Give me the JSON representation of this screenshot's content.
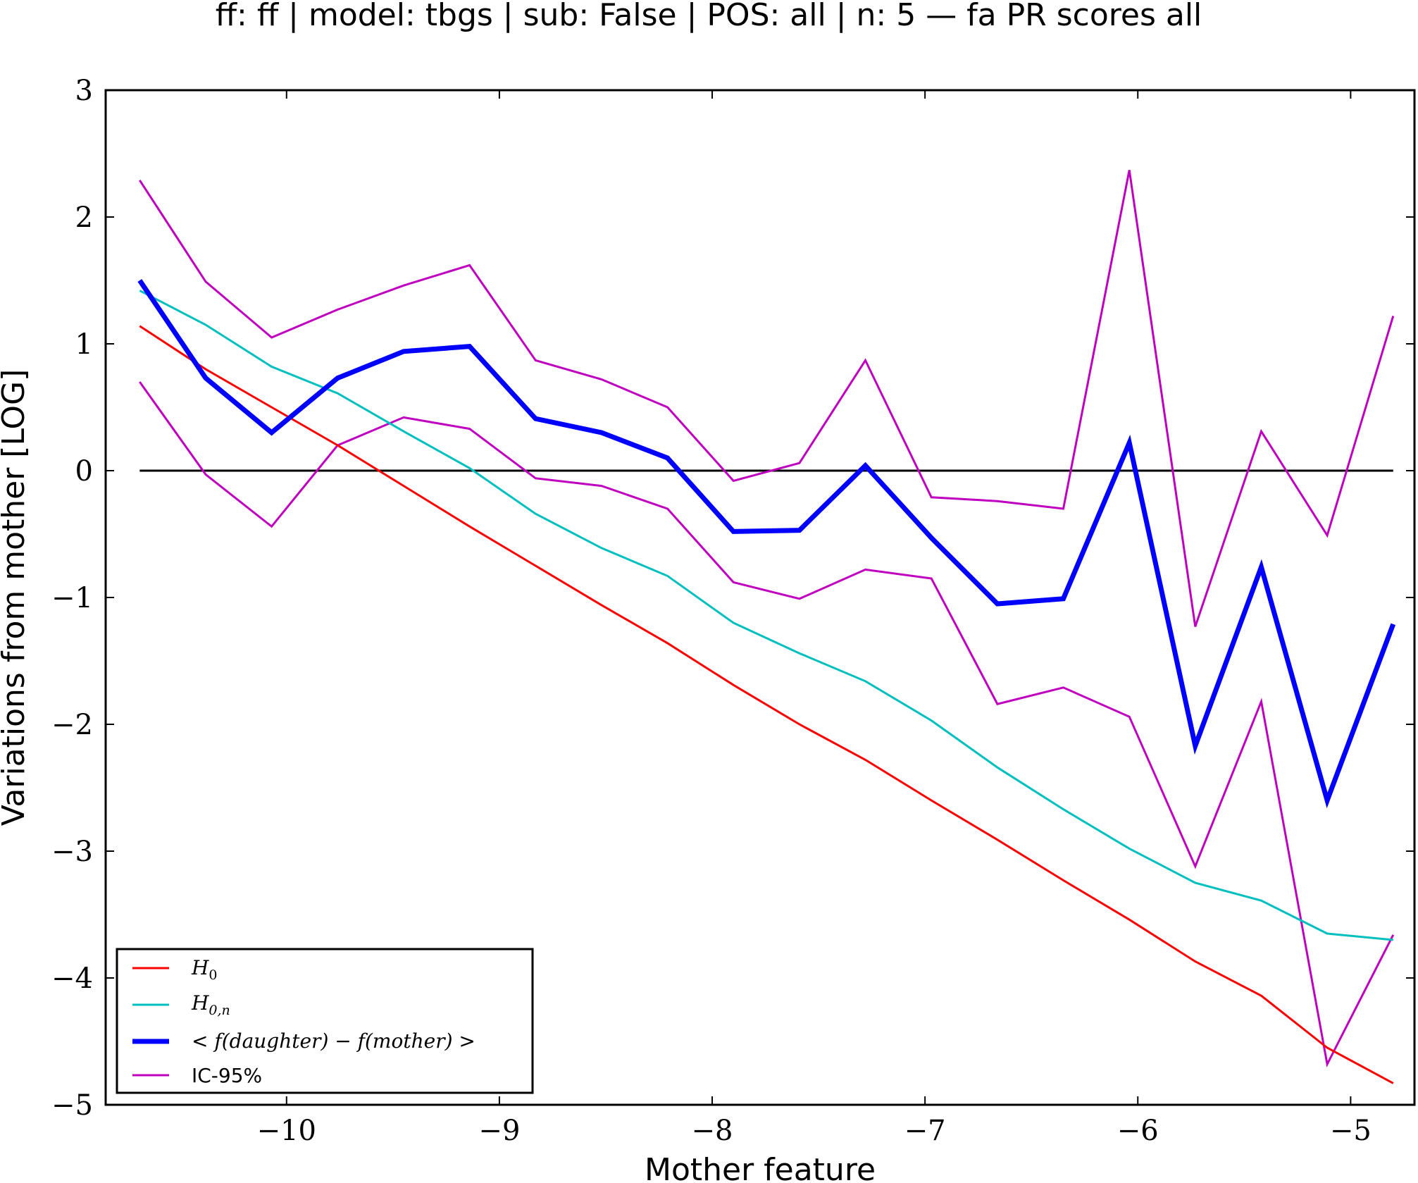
{
  "chart_data": {
    "type": "line",
    "title": "ff: ff | model: tbgs | sub: False | POS: all | n: 5 — fa PR scores all",
    "xlabel": "Mother feature",
    "ylabel": "Variations from mother [LOG]",
    "xlim": [
      -10.85,
      -4.7
    ],
    "ylim": [
      -5,
      3
    ],
    "xticks": [
      -10,
      -9,
      -8,
      -7,
      -6,
      -5
    ],
    "yticks": [
      3,
      2,
      1,
      0,
      -1,
      -2,
      -3,
      -4,
      -5
    ],
    "xtick_labels": [
      "−10",
      "−9",
      "−8",
      "−7",
      "−6",
      "−5"
    ],
    "ytick_labels": [
      "3",
      "2",
      "1",
      "0",
      "−1",
      "−2",
      "−3",
      "−4",
      "−5"
    ],
    "x": [
      -10.69,
      -10.38,
      -10.07,
      -9.76,
      -9.45,
      -9.14,
      -8.83,
      -8.52,
      -8.21,
      -7.9,
      -7.59,
      -7.28,
      -6.97,
      -6.66,
      -6.35,
      -6.04,
      -5.73,
      -5.42,
      -5.11,
      -4.8
    ],
    "reference_line": {
      "y": 0,
      "color": "#000000"
    },
    "legend": {
      "position": "lower-left"
    },
    "grid": false,
    "series": [
      {
        "name": "H_0",
        "color": "#ff0000",
        "width": 3,
        "values": [
          1.14,
          0.8,
          0.5,
          0.2,
          -0.12,
          -0.44,
          -0.75,
          -1.06,
          -1.36,
          -1.69,
          -2.0,
          -2.28,
          -2.6,
          -2.91,
          -3.23,
          -3.54,
          -3.87,
          -4.14,
          -4.55,
          -4.83
        ]
      },
      {
        "name": "H_{0,n}",
        "color": "#00bfbf",
        "width": 3,
        "values": [
          1.42,
          1.15,
          0.82,
          0.61,
          0.31,
          0.02,
          -0.34,
          -0.61,
          -0.83,
          -1.2,
          -1.44,
          -1.66,
          -1.97,
          -2.34,
          -2.67,
          -2.98,
          -3.25,
          -3.39,
          -3.65,
          -3.7
        ]
      },
      {
        "name": "< f(daughter) − f(mother) >",
        "color": "#0000ff",
        "width": 7,
        "values": [
          1.5,
          0.73,
          0.3,
          0.73,
          0.94,
          0.98,
          0.41,
          0.3,
          0.1,
          -0.48,
          -0.47,
          0.04,
          -0.53,
          -1.05,
          -1.01,
          0.22,
          -2.17,
          -0.76,
          -2.6,
          -1.21
        ]
      },
      {
        "name": "IC-95%",
        "color": "#bf00bf",
        "width": 3,
        "legend": true,
        "values": [
          2.29,
          1.49,
          1.05,
          1.27,
          1.46,
          1.62,
          0.87,
          0.72,
          0.5,
          -0.08,
          0.06,
          0.87,
          -0.21,
          -0.24,
          -0.3,
          2.37,
          -1.23,
          0.31,
          -0.51,
          1.22
        ]
      },
      {
        "name": "IC-95% lower",
        "color": "#bf00bf",
        "width": 3,
        "legend": false,
        "values": [
          0.7,
          -0.03,
          -0.44,
          0.2,
          0.42,
          0.33,
          -0.06,
          -0.12,
          -0.3,
          -0.88,
          -1.01,
          -0.78,
          -0.85,
          -1.84,
          -1.71,
          -1.94,
          -3.12,
          -1.82,
          -4.68,
          -3.66
        ]
      }
    ]
  }
}
